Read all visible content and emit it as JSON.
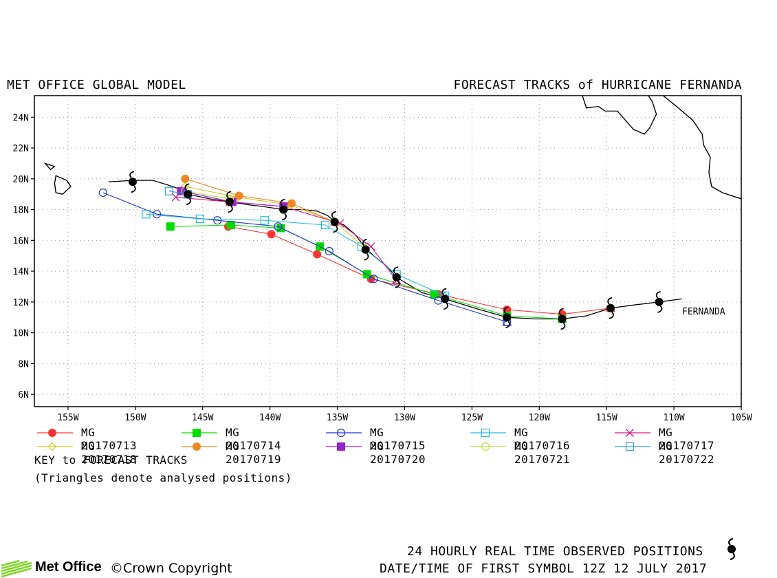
{
  "header": {
    "left": "MET OFFICE GLOBAL MODEL",
    "right": "FORECAST TRACKS of HURRICANE FERNANDA"
  },
  "map": {
    "lon_range": [
      -157.5,
      -105
    ],
    "lat_range": [
      5.2,
      25.4
    ],
    "grid": true,
    "lat_ticks": [
      {
        "v": 24,
        "label": "24N"
      },
      {
        "v": 22,
        "label": "22N"
      },
      {
        "v": 20,
        "label": "20N"
      },
      {
        "v": 18,
        "label": "18N"
      },
      {
        "v": 16,
        "label": "16N"
      },
      {
        "v": 14,
        "label": "14N"
      },
      {
        "v": 12,
        "label": "12N"
      },
      {
        "v": 10,
        "label": "10N"
      },
      {
        "v": 8,
        "label": "8N"
      },
      {
        "v": 6,
        "label": "6N"
      }
    ],
    "lon_ticks": [
      {
        "v": -155,
        "label": "155W"
      },
      {
        "v": -150,
        "label": "150W"
      },
      {
        "v": -145,
        "label": "145W"
      },
      {
        "v": -140,
        "label": "140W"
      },
      {
        "v": -135,
        "label": "135W"
      },
      {
        "v": -130,
        "label": "130W"
      },
      {
        "v": -125,
        "label": "125W"
      },
      {
        "v": -120,
        "label": "120W"
      },
      {
        "v": -115,
        "label": "115W"
      },
      {
        "v": -110,
        "label": "110W"
      },
      {
        "v": -105,
        "label": "105W"
      }
    ],
    "storm_label": "FERNANDA",
    "observed_track": [
      [
        -109.4,
        12.2
      ],
      [
        -111.1,
        12.0
      ],
      [
        -113,
        11.8
      ],
      [
        -114.7,
        11.6
      ],
      [
        -116.5,
        11.1
      ],
      [
        -118.3,
        10.9
      ],
      [
        -120.3,
        10.9
      ],
      [
        -122.4,
        11.0
      ],
      [
        -124.8,
        11.6
      ],
      [
        -127,
        12.2
      ],
      [
        -128.7,
        12.6
      ],
      [
        -130.6,
        13.6
      ],
      [
        -131.3,
        14.3
      ],
      [
        -132.3,
        15.0
      ],
      [
        -132.9,
        15.5
      ],
      [
        -133.7,
        16.4
      ],
      [
        -134.5,
        17.0
      ],
      [
        -135.3,
        17.3
      ],
      [
        -135.7,
        17.6
      ],
      [
        -136.5,
        17.9
      ],
      [
        -137.5,
        18.0
      ],
      [
        -139,
        18.0
      ],
      [
        -140.5,
        18.2
      ],
      [
        -141.5,
        18.3
      ],
      [
        -143,
        18.5
      ],
      [
        -144.5,
        18.7
      ],
      [
        -146.1,
        19.0
      ],
      [
        -146.6,
        19.3
      ],
      [
        -147.6,
        19.6
      ],
      [
        -148.7,
        19.9
      ],
      [
        -150.2,
        19.9
      ],
      [
        -152,
        19.8
      ]
    ],
    "observed_positions": [
      [
        -111.1,
        12.0
      ],
      [
        -114.7,
        11.6
      ],
      [
        -118.3,
        10.9
      ],
      [
        -122.4,
        11.0
      ],
      [
        -127,
        12.2
      ],
      [
        -130.6,
        13.6
      ],
      [
        -132.9,
        15.4
      ],
      [
        -135.2,
        17.2
      ],
      [
        -139,
        18.0
      ],
      [
        -143,
        18.5
      ],
      [
        -146.1,
        19.0
      ],
      [
        -150.2,
        19.8
      ]
    ],
    "forecasts": [
      {
        "name": "MG 20170713",
        "color": "#ff3333",
        "marker": "filled-circle",
        "points": [
          [
            -114.7,
            11.6
          ],
          [
            -118.3,
            11.2
          ],
          [
            -122.4,
            11.5
          ],
          [
            -127.5,
            12.5
          ],
          [
            -132.5,
            13.5
          ],
          [
            -136.5,
            15.1
          ],
          [
            -139.9,
            16.4
          ],
          [
            -143.1,
            16.9
          ]
        ]
      },
      {
        "name": "MG 20170714",
        "color": "#00dd00",
        "marker": "filled-square",
        "points": [
          [
            -118.3,
            10.9
          ],
          [
            -122.4,
            11.1
          ],
          [
            -127.8,
            12.5
          ],
          [
            -132.8,
            13.8
          ],
          [
            -136.3,
            15.6
          ],
          [
            -139.2,
            16.8
          ],
          [
            -142.9,
            17.0
          ],
          [
            -147.4,
            16.9
          ]
        ]
      },
      {
        "name": "MG 20170715",
        "color": "#2233cc",
        "marker": "open-circle",
        "points": [
          [
            -122.4,
            10.7
          ],
          [
            -127.5,
            12.1
          ],
          [
            -132.3,
            13.5
          ],
          [
            -135.6,
            15.3
          ],
          [
            -139.4,
            16.9
          ],
          [
            -143.9,
            17.3
          ],
          [
            -148.4,
            17.7
          ],
          [
            -152.4,
            19.1
          ]
        ]
      },
      {
        "name": "MG 20170716",
        "color": "#22bbdd",
        "marker": "open-square",
        "points": [
          [
            -127,
            12.4
          ],
          [
            -130.6,
            13.8
          ],
          [
            -133.2,
            15.6
          ],
          [
            -135.9,
            17.0
          ],
          [
            -140.4,
            17.3
          ],
          [
            -145.2,
            17.4
          ],
          [
            -149.2,
            17.7
          ]
        ]
      },
      {
        "name": "MG 20170717",
        "color": "#dd1188",
        "marker": "x",
        "points": [
          [
            -130.6,
            13.4
          ],
          [
            -132.5,
            15.6
          ],
          [
            -134.8,
            17.1
          ],
          [
            -139,
            18.2
          ],
          [
            -143,
            18.5
          ],
          [
            -147,
            18.8
          ]
        ]
      },
      {
        "name": "MG 20170718",
        "color": "#cccc22",
        "marker": "open-diamond",
        "points": [
          [
            -132.9,
            15.5
          ],
          [
            -135.2,
            17.2
          ],
          [
            -138.5,
            18.3
          ],
          [
            -142.4,
            18.8
          ],
          [
            -146.3,
            19.5
          ]
        ]
      },
      {
        "name": "MG 20170719",
        "color": "#ee8822",
        "marker": "filled-circle",
        "points": [
          [
            -135.2,
            17.2
          ],
          [
            -138.4,
            18.4
          ],
          [
            -142.3,
            18.9
          ],
          [
            -146.3,
            20.0
          ]
        ]
      },
      {
        "name": "MG 20170720",
        "color": "#9922cc",
        "marker": "filled-square",
        "points": [
          [
            -139,
            18.2
          ],
          [
            -142.8,
            18.5
          ],
          [
            -146.6,
            19.2
          ]
        ]
      },
      {
        "name": "MG 20170721",
        "color": "#bbdd44",
        "marker": "open-circle",
        "points": [
          [
            -143,
            18.7
          ],
          [
            -146.3,
            19.2
          ]
        ]
      },
      {
        "name": "MG 20170722",
        "color": "#3399dd",
        "marker": "open-square",
        "points": [
          [
            -146.1,
            19.0
          ],
          [
            -147.5,
            19.2
          ]
        ]
      }
    ],
    "coastline_paths": [
      [
        [
          -116.8,
          25.4
        ],
        [
          -116.5,
          24.6
        ],
        [
          -115.6,
          24.7
        ],
        [
          -115.1,
          24.4
        ],
        [
          -114.2,
          24.4
        ],
        [
          -113.4,
          23.6
        ],
        [
          -113.0,
          23.2
        ],
        [
          -112.2,
          22.9
        ],
        [
          -111.8,
          23.3
        ],
        [
          -111.3,
          24.2
        ],
        [
          -111.6,
          25.0
        ],
        [
          -111.9,
          25.4
        ]
      ],
      [
        [
          -110.8,
          25.4
        ],
        [
          -109.8,
          24.7
        ],
        [
          -108.6,
          23.8
        ],
        [
          -107.9,
          22.9
        ],
        [
          -107.8,
          22.2
        ],
        [
          -107.3,
          21.4
        ],
        [
          -107.4,
          20.4
        ],
        [
          -107.2,
          19.5
        ],
        [
          -106.4,
          19.1
        ],
        [
          -105,
          18.7
        ]
      ]
    ],
    "islands": [
      [
        [
          -155.9,
          20.2
        ],
        [
          -155.1,
          19.9
        ],
        [
          -154.8,
          19.5
        ],
        [
          -155.4,
          19.0
        ],
        [
          -155.9,
          19.1
        ],
        [
          -156.0,
          19.7
        ],
        [
          -155.9,
          20.2
        ]
      ],
      [
        [
          -156.7,
          21.0
        ],
        [
          -156.0,
          20.8
        ],
        [
          -156.3,
          20.6
        ],
        [
          -156.7,
          21.0
        ]
      ],
      [
        [
          -158.2,
          21.6
        ],
        [
          -157.7,
          21.3
        ],
        [
          -158.0,
          21.2
        ],
        [
          -158.2,
          21.6
        ]
      ]
    ]
  },
  "legend": {
    "title": "KEY to FORECAST TRACKS",
    "note": "(Triangles denote analysed positions)"
  },
  "footer": {
    "observed": "24 HOURLY REAL TIME OBSERVED POSITIONS",
    "first_symbol": "DATE/TIME OF FIRST SYMBOL 12Z 12 JULY 2017",
    "logo": "Met Office",
    "copyright": "©Crown Copyright"
  }
}
